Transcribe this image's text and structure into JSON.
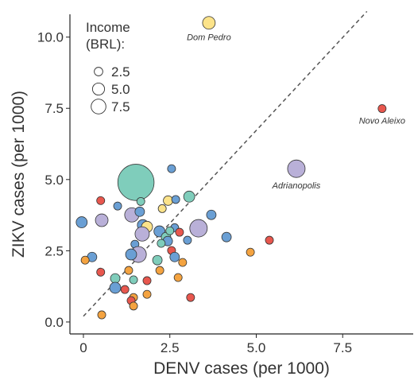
{
  "chart_data": {
    "type": "scatter",
    "x_label": "DENV cases (per 1000)",
    "y_label": "ZIKV cases (per 1000)",
    "xlim": [
      -0.39,
      9.54
    ],
    "ylim": [
      -0.42,
      10.8
    ],
    "xticks": [
      0,
      2.5,
      {
        "value": 5,
        "label": "5.0"
      },
      7.5
    ],
    "yticks": [
      {
        "value": 0,
        "label": "0.0"
      },
      2.5,
      {
        "value": 5,
        "label": "5.0"
      },
      7.5,
      {
        "value": 10,
        "label": "10.0"
      }
    ],
    "legend_title": [
      "Income",
      "(BRL):"
    ],
    "legend_sizes": [
      2.5,
      {
        "value": 5,
        "label": "5.0"
      },
      7.5
    ],
    "fit_line": {
      "x": [
        0,
        8.2
      ],
      "y": [
        0.2,
        10.9
      ]
    },
    "x": [
      3.63,
      8.64,
      6.16,
      1.52,
      2.55,
      3.06,
      2.45,
      2.28,
      2.67,
      0.5,
      0.99,
      0.53,
      -0.05,
      1.4,
      1.63,
      1.66,
      1.72,
      1.84,
      1.7,
      1.49,
      2.2,
      2.64,
      3.33,
      2.78,
      3.7,
      4.14,
      2.39,
      2.5,
      2.44,
      2.25,
      2.55,
      2.64,
      1.59,
      1.38,
      2.14,
      2.87,
      3.01,
      5.38,
      4.83,
      0.25,
      0.05,
      0.5,
      1.31,
      1.45,
      1.84,
      2.21,
      2.74,
      0.92,
      0.92,
      1.2,
      1.45,
      1.38,
      1.84,
      1.45,
      3.1,
      0.53
    ],
    "y": [
      10.5,
      7.49,
      5.38,
      4.9,
      5.38,
      4.4,
      4.26,
      3.98,
      4.3,
      4.26,
      4.07,
      3.57,
      3.5,
      3.76,
      3.87,
      4.23,
      3.4,
      3.34,
      3.09,
      2.73,
      3.18,
      3.31,
      3.29,
      3.15,
      3.76,
      2.98,
      2.98,
      3.2,
      2.84,
      2.76,
      2.51,
      2.28,
      2.37,
      2.37,
      2.17,
      2.09,
      2.87,
      2.87,
      2.45,
      2.28,
      2.17,
      1.75,
      1.81,
      1.48,
      1.45,
      1.81,
      1.56,
      1.53,
      1.2,
      1.14,
      0.86,
      0.75,
      0.97,
      0.56,
      0.86,
      0.25
    ],
    "sizes": [
      5.5,
      2.2,
      10.5,
      45,
      2.2,
      4.2,
      3.1,
      2.2,
      2.2,
      2.2,
      2.2,
      5.5,
      4.2,
      7,
      3.1,
      2.2,
      4.2,
      4.2,
      7,
      2.2,
      4.2,
      2.2,
      10.5,
      2.2,
      3.1,
      3.1,
      3.1,
      2.2,
      3.1,
      2.2,
      2.2,
      3.1,
      8.7,
      4.2,
      3.1,
      2.2,
      2.2,
      2.2,
      2.2,
      3.1,
      2.2,
      2.2,
      2.2,
      2.2,
      2.2,
      2.2,
      2.2,
      3.1,
      4.2,
      2.2,
      2.2,
      2.2,
      2.2,
      2.2,
      2.2,
      2.2
    ],
    "colors": [
      "#fce38a",
      "#e8574e",
      "#b9b0d8",
      "#7fcdbb",
      "#6a9fd4",
      "#7fcdbb",
      "#fce38a",
      "#fce38a",
      "#6a9fd4",
      "#e8574e",
      "#6a9fd4",
      "#b9b0d8",
      "#6a9fd4",
      "#b9b0d8",
      "#6a9fd4",
      "#7fcdbb",
      "#6a9fd4",
      "#fce38a",
      "#b9b0d8",
      "#6a9fd4",
      "#6a9fd4",
      "#6a9fd4",
      "#b9b0d8",
      "#e8574e",
      "#6a9fd4",
      "#6a9fd4",
      "#7fcdbb",
      "#7fcdbb",
      "#6a9fd4",
      "#7fcdbb",
      "#e8574e",
      "#6a9fd4",
      "#b9b0d8",
      "#6a9fd4",
      "#7fcdbb",
      "#f4a340",
      "#6a9fd4",
      "#e8574e",
      "#f4a340",
      "#6a9fd4",
      "#f4a340",
      "#e8574e",
      "#f4a340",
      "#7fcdbb",
      "#e8574e",
      "#f4a340",
      "#f4a340",
      "#7fcdbb",
      "#6a9fd4",
      "#e8574e",
      "#f4a340",
      "#e8574e",
      "#f4a340",
      "#f4a340",
      "#e8574e",
      "#f4a340"
    ],
    "labels": [
      "Dom Pedro",
      "Novo Aleixo",
      "Adrianopolis",
      null,
      null,
      null,
      null,
      null,
      null,
      null,
      null,
      null,
      null,
      null,
      null,
      null,
      null,
      null,
      null,
      null,
      null,
      null,
      null,
      null,
      null,
      null,
      null,
      null,
      null,
      null,
      null,
      null,
      null,
      null,
      null,
      null,
      null,
      null,
      null,
      null,
      null,
      null,
      null,
      null,
      null,
      null,
      null,
      null,
      null,
      null,
      null,
      null,
      null,
      null,
      null,
      null
    ]
  }
}
